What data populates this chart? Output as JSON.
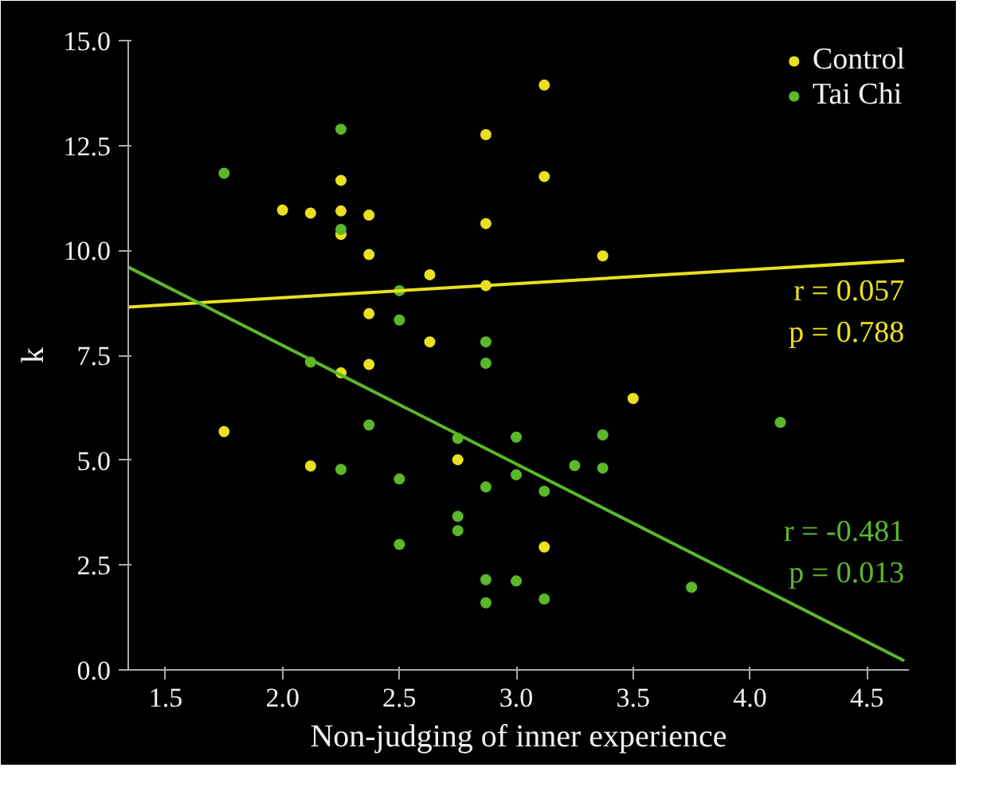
{
  "chart_data": {
    "type": "scatter",
    "xlabel": "Non-judging of inner experience",
    "ylabel": "k",
    "xlim": [
      1.34,
      4.68
    ],
    "ylim": [
      0,
      15
    ],
    "xticks": [
      {
        "value": 1.5,
        "label": "1.5"
      },
      {
        "value": 2,
        "label": "2.0"
      },
      {
        "value": 2.5,
        "label": "2.5"
      },
      {
        "value": 3,
        "label": "3.0"
      },
      {
        "value": 3.5,
        "label": "3.5"
      },
      {
        "value": 4,
        "label": "4.0"
      },
      {
        "value": 4.5,
        "label": "4.5"
      }
    ],
    "yticks": [
      {
        "value": 0,
        "label": "0.0"
      },
      {
        "value": 2.5,
        "label": "2.5"
      },
      {
        "value": 5,
        "label": "5.0"
      },
      {
        "value": 7.5,
        "label": "7.5"
      },
      {
        "value": 10,
        "label": "10.0"
      },
      {
        "value": 12.5,
        "label": "12.5"
      },
      {
        "value": 15,
        "label": "15.0"
      }
    ],
    "grid": false,
    "legend": "top right",
    "series": [
      {
        "name": "Control",
        "color": "#e8e020",
        "marker": "circle",
        "x": [
          1.75,
          2.0,
          2.12,
          2.25,
          2.37,
          2.87,
          2.87,
          2.25,
          2.25,
          2.37,
          2.63,
          2.87,
          2.37,
          2.63,
          2.37,
          2.25,
          2.12,
          2.75,
          3.5,
          3.12,
          3.12,
          3.12,
          3.37
        ],
        "values": [
          5.68,
          10.96,
          10.89,
          10.94,
          10.84,
          12.76,
          10.64,
          11.67,
          10.38,
          9.9,
          9.42,
          9.16,
          8.49,
          7.82,
          7.28,
          7.08,
          4.86,
          5.01,
          6.47,
          2.93,
          13.94,
          11.76,
          9.87
        ]
      },
      {
        "name": "Tai Chi",
        "color": "#5cb82a",
        "marker": "circle",
        "x": [
          2.25,
          1.75,
          2.25,
          2.5,
          2.5,
          2.87,
          2.87,
          2.12,
          2.37,
          2.75,
          3.0,
          2.25,
          3.0,
          2.5,
          2.87,
          2.75,
          2.75,
          2.5,
          2.87,
          3.0,
          2.87,
          4.13,
          3.37,
          3.25,
          3.37,
          3.12,
          3.12,
          3.75
        ],
        "values": [
          12.89,
          11.84,
          10.5,
          9.04,
          8.34,
          7.82,
          7.31,
          7.34,
          5.84,
          5.52,
          5.55,
          4.78,
          4.65,
          4.55,
          4.36,
          3.66,
          3.32,
          2.99,
          2.15,
          2.12,
          1.6,
          5.9,
          5.6,
          4.87,
          4.81,
          4.26,
          1.69,
          1.97
        ]
      },
      {
        "color": "#e8e020",
        "type": "line",
        "x": [
          1.34,
          4.66
        ],
        "values": [
          8.65,
          9.76
        ]
      },
      {
        "color": "#5cb82a",
        "type": "line",
        "x": [
          1.34,
          4.66
        ],
        "values": [
          9.6,
          0.22
        ]
      }
    ],
    "annotations": [
      "r = 0.057",
      "p = 0.788",
      "r = -0.481",
      "p = 0.013"
    ]
  }
}
